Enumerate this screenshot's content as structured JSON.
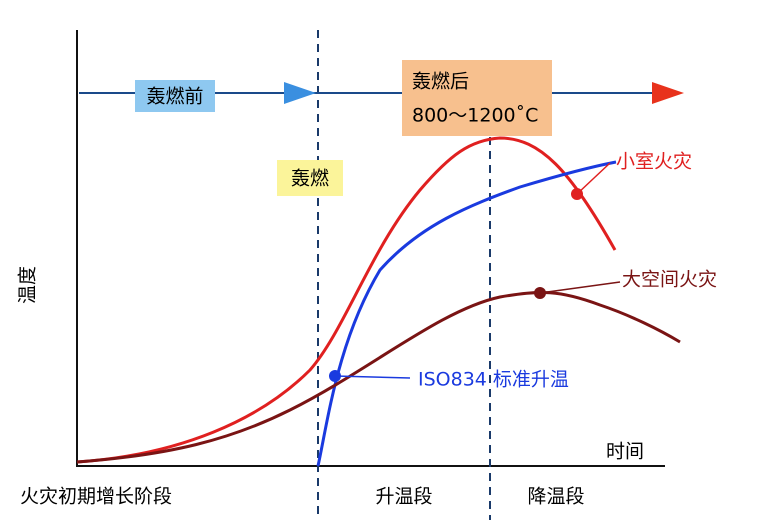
{
  "labels": {
    "pre_flashover": "轰燃前",
    "post_flashover": "轰燃后",
    "post_flashover_temp": "800～1200˚C",
    "flashover": "轰燃",
    "small_room": "小室火灾",
    "large_space": "大空间火灾",
    "iso834": "ISO834 标准升温"
  },
  "axes": {
    "y": "温度",
    "x": "时间"
  },
  "stages": [
    "火灾初期增长阶段",
    "升温段",
    "降温段"
  ]
}
